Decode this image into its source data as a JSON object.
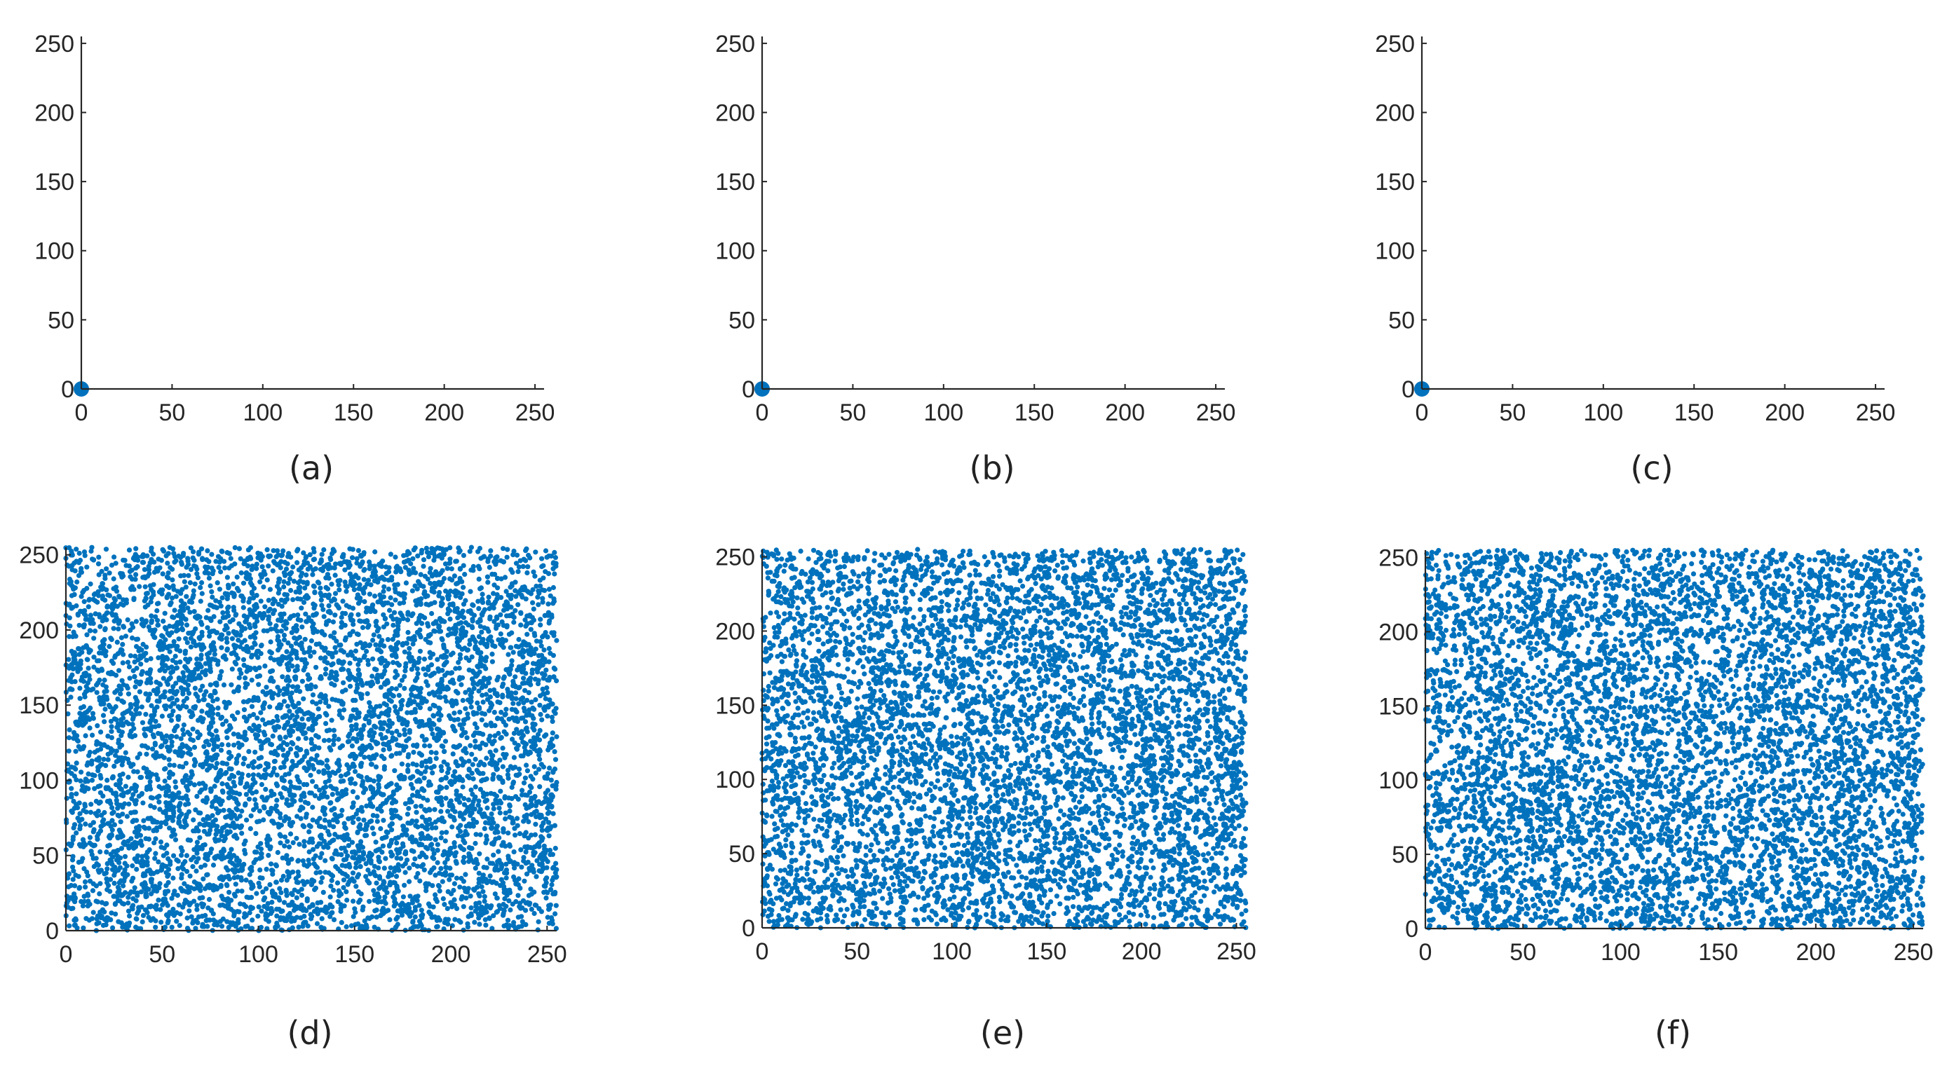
{
  "figure": {
    "colors": {
      "marker": "#0072bd",
      "axis": "#262626",
      "text": "#262626",
      "background": "#ffffff"
    }
  },
  "chart_data": [
    {
      "type": "scatter",
      "caption": "(a)",
      "title": "",
      "xlabel": "",
      "ylabel": "",
      "xlim": [
        0,
        255
      ],
      "ylim": [
        0,
        255
      ],
      "xticks": [
        0,
        50,
        100,
        150,
        200,
        250
      ],
      "yticks": [
        0,
        50,
        100,
        150,
        200,
        250
      ],
      "box": false,
      "grid": false,
      "marker": "large",
      "series": [
        {
          "x": [
            0
          ],
          "y": [
            0
          ]
        }
      ]
    },
    {
      "type": "scatter",
      "caption": "(b)",
      "title": "",
      "xlabel": "",
      "ylabel": "",
      "xlim": [
        0,
        255
      ],
      "ylim": [
        0,
        255
      ],
      "xticks": [
        0,
        50,
        100,
        150,
        200,
        250
      ],
      "yticks": [
        0,
        50,
        100,
        150,
        200,
        250
      ],
      "box": false,
      "grid": false,
      "marker": "large",
      "series": [
        {
          "x": [
            0
          ],
          "y": [
            0
          ]
        }
      ]
    },
    {
      "type": "scatter",
      "caption": "(c)",
      "title": "",
      "xlabel": "",
      "ylabel": "",
      "xlim": [
        0,
        255
      ],
      "ylim": [
        0,
        255
      ],
      "xticks": [
        0,
        50,
        100,
        150,
        200,
        250
      ],
      "yticks": [
        0,
        50,
        100,
        150,
        200,
        250
      ],
      "box": false,
      "grid": false,
      "marker": "large",
      "series": [
        {
          "x": [
            0
          ],
          "y": [
            0
          ]
        }
      ]
    },
    {
      "type": "scatter",
      "caption": "(d)",
      "title": "",
      "xlabel": "",
      "ylabel": "",
      "xlim": [
        0,
        255
      ],
      "ylim": [
        0,
        255
      ],
      "xticks": [
        0,
        50,
        100,
        150,
        200,
        250
      ],
      "yticks": [
        0,
        50,
        100,
        150,
        200,
        250
      ],
      "box": false,
      "grid": false,
      "marker": "small",
      "distribution": "uniform",
      "point_count": 6500,
      "x_range": [
        0,
        255
      ],
      "y_range": [
        0,
        255
      ]
    },
    {
      "type": "scatter",
      "caption": "(e)",
      "title": "",
      "xlabel": "",
      "ylabel": "",
      "xlim": [
        0,
        255
      ],
      "ylim": [
        0,
        255
      ],
      "xticks": [
        0,
        50,
        100,
        150,
        200,
        250
      ],
      "yticks": [
        0,
        50,
        100,
        150,
        200,
        250
      ],
      "box": false,
      "grid": false,
      "marker": "small",
      "distribution": "uniform",
      "point_count": 6500,
      "x_range": [
        0,
        255
      ],
      "y_range": [
        0,
        255
      ]
    },
    {
      "type": "scatter",
      "caption": "(f)",
      "title": "",
      "xlabel": "",
      "ylabel": "",
      "xlim": [
        0,
        255
      ],
      "ylim": [
        0,
        255
      ],
      "xticks": [
        0,
        50,
        100,
        150,
        200,
        250
      ],
      "yticks": [
        0,
        50,
        100,
        150,
        200,
        250
      ],
      "box": false,
      "grid": false,
      "marker": "small",
      "distribution": "uniform",
      "point_count": 6500,
      "x_range": [
        0,
        255
      ],
      "y_range": [
        0,
        255
      ]
    }
  ]
}
